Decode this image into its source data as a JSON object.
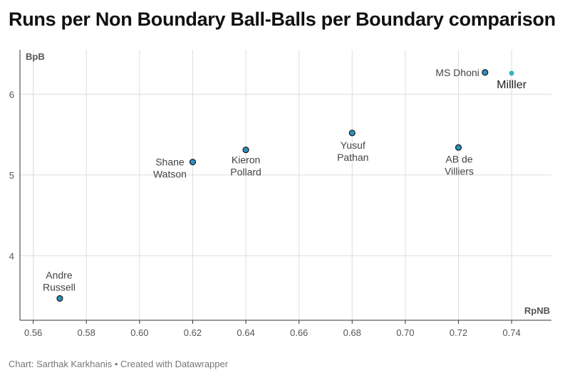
{
  "title": "Runs per Non Boundary Ball-Balls per Boundary comparison",
  "footer": {
    "credit": "Chart: Sarthak Karkhanis",
    "separator": "•",
    "created": "Created with Datawrapper"
  },
  "colors": {
    "point_fill": "#2c8fbf",
    "point_fill_highlight": "#38b2c8",
    "point_stroke": "#1a1a1a",
    "grid": "#dddddd",
    "axis": "#333333"
  },
  "chart_data": {
    "type": "scatter",
    "title": "Runs per Non Boundary Ball-Balls per Boundary comparison",
    "xlabel": "RpNB",
    "ylabel": "BpB",
    "xlim": [
      0.555,
      0.755
    ],
    "ylim": [
      3.2,
      6.55
    ],
    "xticks": [
      0.56,
      0.58,
      0.6,
      0.62,
      0.64,
      0.66,
      0.68,
      0.7,
      0.72,
      0.74
    ],
    "xtick_labels": [
      "0.56",
      "0.58",
      "0.60",
      "0.62",
      "0.64",
      "0.66",
      "0.68",
      "0.70",
      "0.72",
      "0.74"
    ],
    "yticks": [
      4,
      5,
      6
    ],
    "ytick_labels": [
      "4",
      "5",
      "6"
    ],
    "grid": true,
    "points": [
      {
        "label": [
          "Andre",
          "Russell"
        ],
        "x": 0.57,
        "y": 3.47
      },
      {
        "label": [
          "Shane",
          "Watson"
        ],
        "x": 0.62,
        "y": 5.16
      },
      {
        "label": [
          "Kieron",
          "Pollard"
        ],
        "x": 0.64,
        "y": 5.31
      },
      {
        "label": [
          "Yusuf",
          "Pathan"
        ],
        "x": 0.68,
        "y": 5.52
      },
      {
        "label": [
          "AB de",
          "Villiers"
        ],
        "x": 0.72,
        "y": 5.34
      },
      {
        "label": [
          "MS Dhoni"
        ],
        "x": 0.73,
        "y": 6.27
      },
      {
        "label": [
          "Milller"
        ],
        "x": 0.74,
        "y": 6.26,
        "highlight": true
      }
    ]
  }
}
